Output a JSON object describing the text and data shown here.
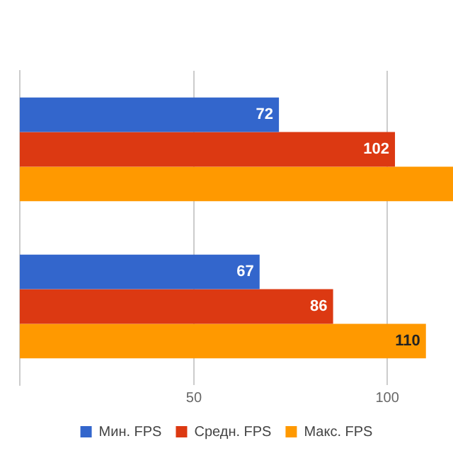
{
  "chart_data": {
    "type": "bar",
    "orientation": "horizontal",
    "categories": [
      null,
      null
    ],
    "series": [
      {
        "name": "Мин. FPS",
        "color": "#3366cc",
        "values": [
          72,
          67
        ],
        "value_labels": [
          "72",
          "67"
        ]
      },
      {
        "name": "Средн. FPS",
        "color": "#dc3912",
        "values": [
          102,
          86
        ],
        "value_labels": [
          "102",
          "86"
        ]
      },
      {
        "name": "Макс. FPS",
        "color": "#ff9900",
        "values": [
          117,
          110
        ],
        "value_labels": [
          null,
          "110"
        ]
      }
    ],
    "xlim": [
      5,
      117
    ],
    "xticks": [
      50,
      100
    ],
    "grid": "x",
    "legend": "bottom"
  }
}
